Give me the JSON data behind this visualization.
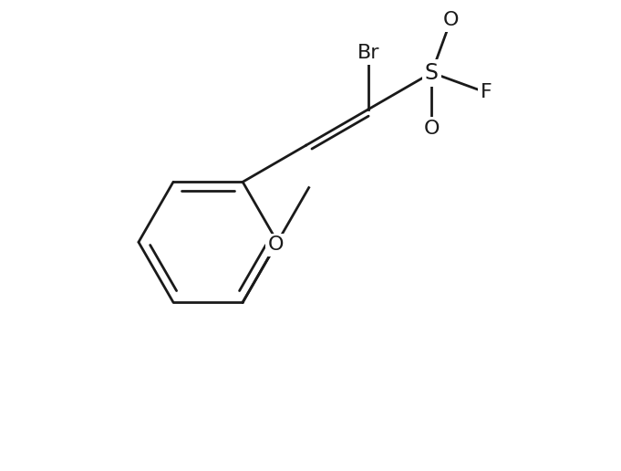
{
  "background_color": "#ffffff",
  "line_color": "#1a1a1a",
  "line_width": 2.0,
  "font_size": 16,
  "figsize": [
    6.81,
    5.16
  ],
  "dpi": 100,
  "xlim": [
    -3.5,
    5.0
  ],
  "ylim": [
    -3.2,
    3.8
  ]
}
